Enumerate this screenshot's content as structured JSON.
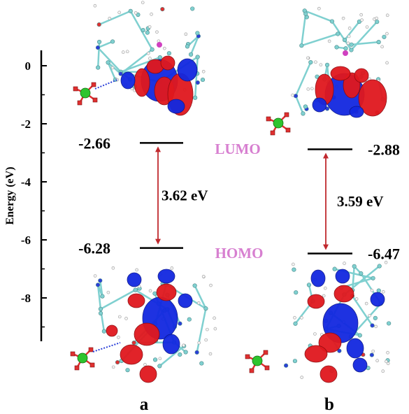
{
  "chart_data": {
    "type": "energy-level",
    "ylabel": "Energy (eV)",
    "ylim": [
      -9.5,
      0.5
    ],
    "yticks": [
      0,
      -2,
      -4,
      -6,
      -8
    ],
    "panels": [
      {
        "label": "a",
        "lumo": -2.66,
        "homo": -6.28,
        "lumo_text": "-2.66",
        "homo_text": "-6.28",
        "gap_text": "3.62 eV"
      },
      {
        "label": "b",
        "lumo": -2.88,
        "homo": -6.47,
        "lumo_text": "-2.88",
        "homo_text": "-6.47",
        "gap_text": "3.59 eV"
      }
    ],
    "orbital_labels": {
      "lumo": "LUMO",
      "homo": "HOMO"
    },
    "colors": {
      "arrow": "#c0282d",
      "orbital_label": "#d77fd0",
      "lobe_positive": "#e0181e",
      "lobe_negative": "#1228e0",
      "carbon": "#7fd0d0",
      "chlorine": "#2ec42e",
      "oxygen": "#e03030",
      "phosphorus": "#d040c0"
    }
  },
  "ytick_text": [
    "0",
    "-2",
    "-4",
    "-6",
    "-8"
  ]
}
